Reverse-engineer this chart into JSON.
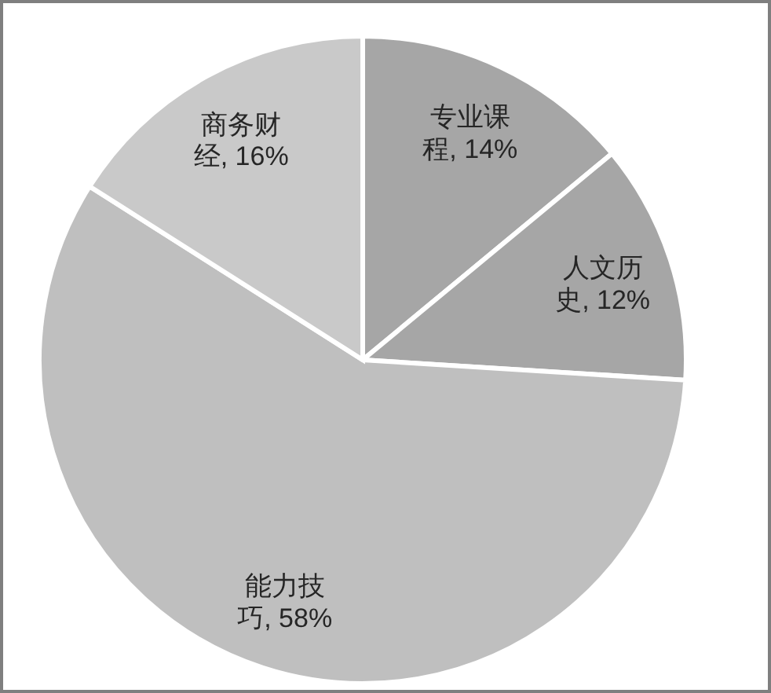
{
  "chart_data": {
    "type": "pie",
    "categories": [
      "专业课程",
      "人文历史",
      "能力技巧",
      "商务财经"
    ],
    "values": [
      14,
      12,
      58,
      16
    ],
    "value_labels": [
      "14%",
      "12%",
      "58%",
      "16%"
    ],
    "colors": [
      "#a6a6a6",
      "#a6a6a6",
      "#bfbfbf",
      "#c9c9c9"
    ],
    "legend": false
  }
}
